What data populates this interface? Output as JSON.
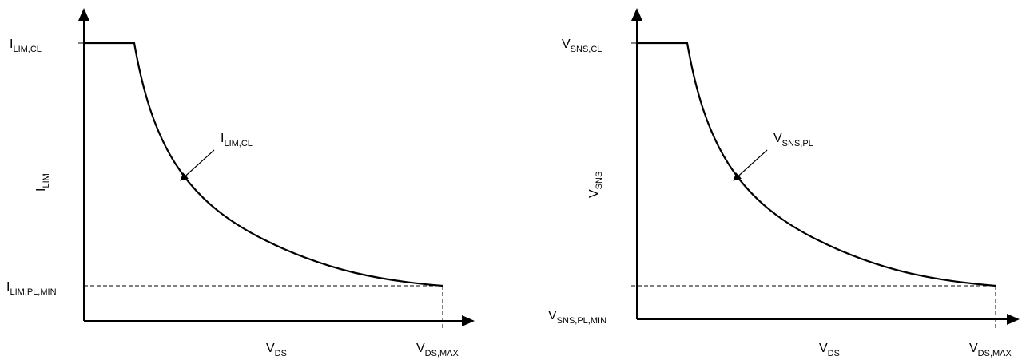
{
  "diagrams": [
    {
      "y_axis_label": {
        "main": "I",
        "sub": "LIM"
      },
      "y_top_label": {
        "main": "I",
        "sub": "LIM,CL"
      },
      "y_bottom_label": {
        "main": "I",
        "sub": "LIM,PL,MIN"
      },
      "curve_callout": {
        "main": "I",
        "sub": "LIM,CL"
      },
      "x_axis_label": {
        "main": "V",
        "sub": "DS"
      },
      "x_end_label": {
        "main": "V",
        "sub": "DS,MAX"
      }
    },
    {
      "y_axis_label": {
        "main": "V",
        "sub": "SNS"
      },
      "y_top_label": {
        "main": "V",
        "sub": "SNS,CL"
      },
      "y_bottom_label": {
        "main": "V",
        "sub": "SNS,PL,MIN"
      },
      "curve_callout": {
        "main": "V",
        "sub": "SNS,PL"
      },
      "x_axis_label": {
        "main": "V",
        "sub": "DS"
      },
      "x_end_label": {
        "main": "V",
        "sub": "DS,MAX"
      }
    }
  ]
}
